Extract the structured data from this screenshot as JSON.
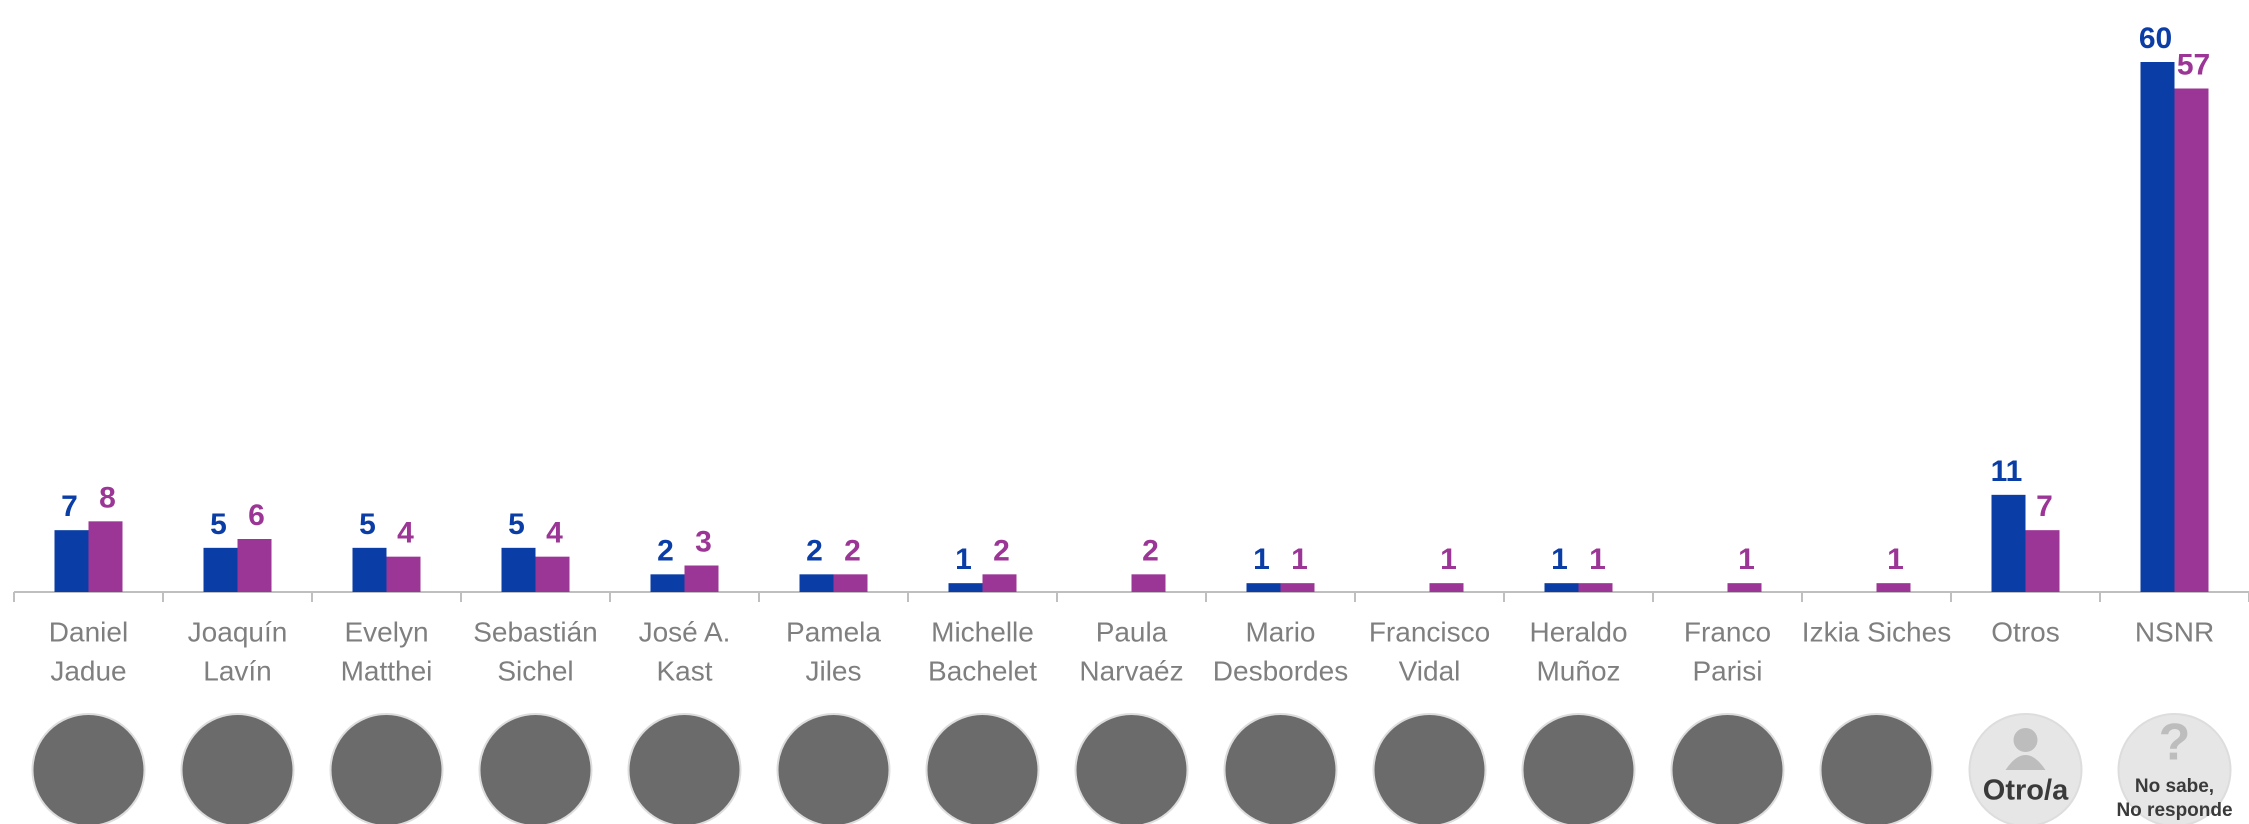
{
  "chart_data": {
    "type": "bar",
    "categories": [
      [
        "Daniel",
        "Jadue"
      ],
      [
        "Joaquín",
        "Lavín"
      ],
      [
        "Evelyn",
        "Matthei"
      ],
      [
        "Sebastián",
        "Sichel"
      ],
      [
        "José A.",
        "Kast"
      ],
      [
        "Pamela",
        "Jiles"
      ],
      [
        "Michelle",
        "Bachelet"
      ],
      [
        "Paula",
        "Narvaéz"
      ],
      [
        "Mario",
        "Desbordes"
      ],
      [
        "Francisco",
        "Vidal"
      ],
      [
        "Heraldo",
        "Muñoz"
      ],
      [
        "Franco",
        "Parisi"
      ],
      [
        "Izkia Siches"
      ],
      [
        "Otros"
      ],
      [
        "NSNR"
      ]
    ],
    "series": [
      {
        "color": "#0a3ea6",
        "values": [
          7,
          5,
          5,
          5,
          2,
          2,
          1,
          null,
          1,
          null,
          1,
          null,
          null,
          11,
          60
        ]
      },
      {
        "color": "#9b3596",
        "values": [
          8,
          6,
          4,
          4,
          3,
          2,
          2,
          2,
          1,
          1,
          1,
          1,
          1,
          7,
          57
        ]
      }
    ],
    "ylim": [
      0,
      60
    ],
    "icon_labels": {
      "otros": [
        "Otro/a"
      ],
      "nsnr": [
        "No sabe,",
        "No responde"
      ]
    }
  }
}
